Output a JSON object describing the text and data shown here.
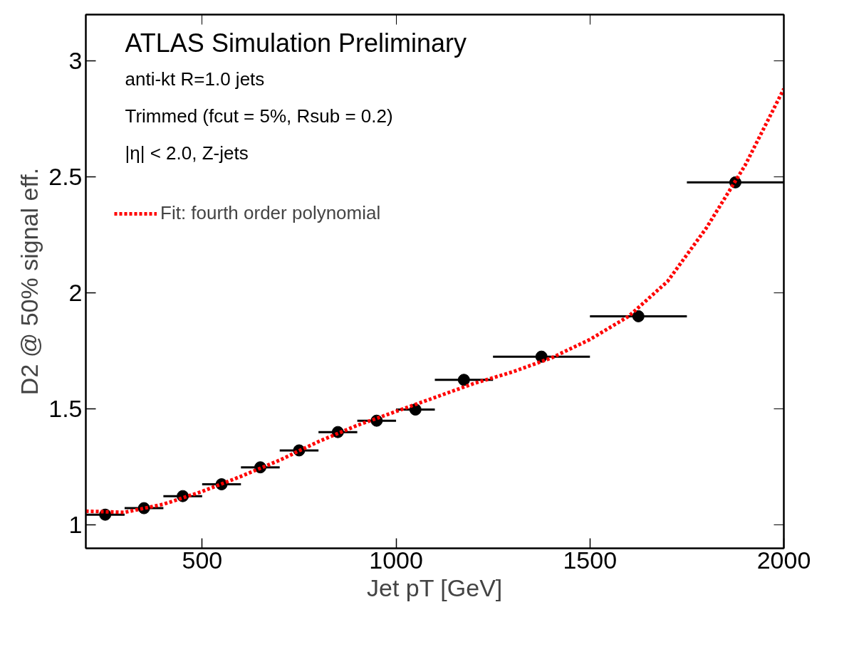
{
  "chart_data": {
    "type": "scatter",
    "title": "ATLAS Simulation Preliminary",
    "xlabel": "Jet pT [GeV]",
    "ylabel": "D2 @ 50% signal eff.",
    "annotations": [
      "anti-kt R=1.0 jets",
      "Trimmed (fcut = 5%, Rsub = 0.2)",
      "|η| < 2.0, Z-jets"
    ],
    "x": [
      250,
      350,
      450,
      550,
      650,
      750,
      850,
      950,
      1050,
      1175,
      1375,
      1625,
      1875
    ],
    "series": [
      {
        "color": "#000000",
        "marker": "circle",
        "values": [
          1.045,
          1.073,
          1.125,
          1.176,
          1.249,
          1.322,
          1.401,
          1.45,
          1.498,
          1.626,
          1.726,
          1.9,
          2.477
        ],
        "xerrors": [
          50,
          50,
          50,
          50,
          50,
          50,
          50,
          50,
          50,
          75,
          125,
          125,
          125
        ]
      },
      {
        "type": "line",
        "name": "Fit: fourth order polynomial",
        "color": "#ff0000",
        "line_style": "dashed",
        "x": [
          200,
          300,
          400,
          500,
          600,
          700,
          800,
          900,
          1000,
          1100,
          1200,
          1300,
          1400,
          1500,
          1600,
          1700,
          1800,
          1900,
          2000
        ],
        "values": [
          1.06,
          1.055,
          1.09,
          1.145,
          1.21,
          1.28,
          1.36,
          1.43,
          1.49,
          1.55,
          1.61,
          1.66,
          1.72,
          1.8,
          1.9,
          2.05,
          2.28,
          2.55,
          2.88
        ]
      }
    ],
    "xlim": [
      200,
      2000
    ],
    "xticks": [
      500,
      1000,
      1500,
      2000
    ],
    "ylim": [
      0.9,
      3.2
    ],
    "yticks": [
      1,
      {
        "value": 1.5,
        "label": "1.5"
      },
      2,
      {
        "value": 2.5,
        "label": "2.5"
      },
      3
    ],
    "grid": false,
    "legend": "top left"
  }
}
